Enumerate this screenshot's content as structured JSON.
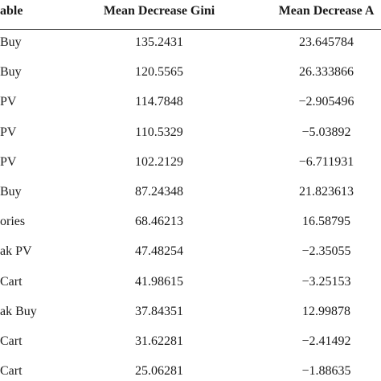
{
  "table": {
    "header": [
      "able",
      "Mean Decrease Gini",
      "Mean Decrease A"
    ],
    "rows": [
      [
        "Buy",
        "135.2431",
        "23.645784"
      ],
      [
        "Buy",
        "120.5565",
        "26.333866"
      ],
      [
        "PV",
        "114.7848",
        "−2.905496"
      ],
      [
        "PV",
        "110.5329",
        "−5.03892"
      ],
      [
        "PV",
        "102.2129",
        "−6.711931"
      ],
      [
        "Buy",
        "87.24348",
        "21.823613"
      ],
      [
        "ories",
        "68.46213",
        "16.58795"
      ],
      [
        "ak PV",
        "47.48254",
        "−2.35055"
      ],
      [
        "Cart",
        "41.98615",
        "−3.25153"
      ],
      [
        "ak Buy",
        "37.84351",
        "12.99878"
      ],
      [
        "Cart",
        "31.62281",
        "−2.41492"
      ],
      [
        "Cart",
        "25.06281",
        "−1.88635"
      ]
    ]
  }
}
